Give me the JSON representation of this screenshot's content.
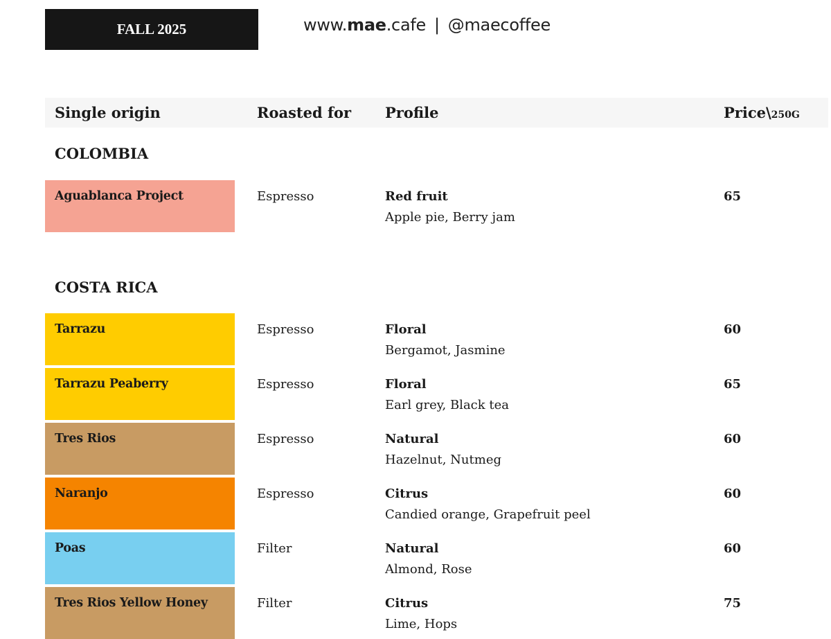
{
  "header": {
    "season": "FALL 2025",
    "website_prefix": "www.",
    "website_brand": "mae",
    "website_suffix": ".cafe",
    "separator": "|",
    "handle": "@maecoffee"
  },
  "table": {
    "columns": {
      "origin": "Single origin",
      "roasted_for": "Roasted for",
      "profile": "Profile",
      "price": "Price\\",
      "price_unit": "250G"
    },
    "sections": [
      {
        "country": "COLOMBIA",
        "rows": [
          {
            "name": "Aguablanca Project",
            "color": "#f5a393",
            "roasted_for": "Espresso",
            "profile": "Red fruit",
            "notes": "Apple pie, Berry jam",
            "price": "65"
          }
        ]
      },
      {
        "country": "COSTA RICA",
        "rows": [
          {
            "name": "Tarrazu",
            "color": "#ffcc00",
            "roasted_for": "Espresso",
            "profile": "Floral",
            "notes": "Bergamot, Jasmine",
            "price": "60"
          },
          {
            "name": "Tarrazu Peaberry",
            "color": "#ffcc00",
            "roasted_for": "Espresso",
            "profile": "Floral",
            "notes": "Earl grey, Black tea",
            "price": "65"
          },
          {
            "name": "Tres Rios",
            "color": "#c89b63",
            "roasted_for": "Espresso",
            "profile": "Natural",
            "notes": "Hazelnut, Nutmeg",
            "price": "60"
          },
          {
            "name": "Naranjo",
            "color": "#f58400",
            "roasted_for": "Espresso",
            "profile": "Citrus",
            "notes": "Candied orange, Grapefruit peel",
            "price": "60"
          },
          {
            "name": "Poas",
            "color": "#78cff0",
            "roasted_for": "Filter",
            "profile": "Natural",
            "notes": "Almond, Rose",
            "price": "60"
          },
          {
            "name": "Tres Rios Yellow Honey",
            "color": "#c89b63",
            "roasted_for": "Filter",
            "profile": "Citrus",
            "notes": "Lime, Hops",
            "price": "75"
          }
        ]
      }
    ]
  }
}
